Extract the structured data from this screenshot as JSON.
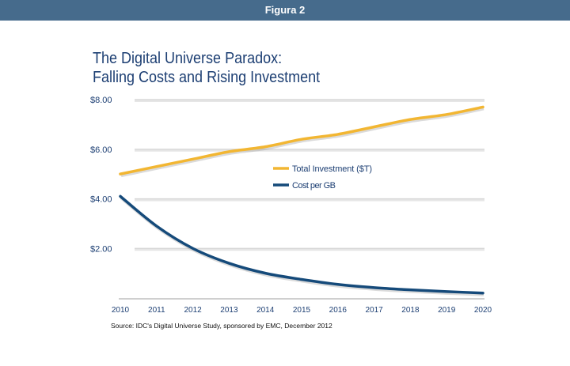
{
  "header": {
    "label": "Figura 2"
  },
  "chart_data": {
    "type": "line",
    "title_line1": "The Digital Universe Paradox:",
    "title_line2": "Falling Costs and Rising Investment",
    "x": [
      2010,
      2011,
      2012,
      2013,
      2014,
      2015,
      2016,
      2017,
      2018,
      2019,
      2020
    ],
    "x_tick_labels": [
      "2010",
      "2011",
      "2012",
      "2013",
      "2014",
      "2015",
      "2016",
      "2017",
      "2018",
      "2019",
      "2020"
    ],
    "y_tick_labels": [
      "$2.00",
      "$4.00",
      "$6.00",
      "$8.00"
    ],
    "y_ticks": [
      2,
      4,
      6,
      8
    ],
    "ylim": [
      0,
      8
    ],
    "xlabel": "",
    "ylabel": "",
    "grid": true,
    "legend_position": "center",
    "series": [
      {
        "name": "Total Investment ($T)",
        "color": "#f2b632",
        "values": [
          5.0,
          5.3,
          5.6,
          5.9,
          6.1,
          6.4,
          6.6,
          6.9,
          7.2,
          7.4,
          7.7
        ]
      },
      {
        "name": "Cost per GB",
        "color": "#154a7a",
        "values": [
          4.1,
          2.9,
          2.0,
          1.4,
          1.0,
          0.75,
          0.55,
          0.42,
          0.33,
          0.26,
          0.2
        ]
      }
    ],
    "source": "Source: IDC's Digital Universe Study, sponsored by EMC, December 2012"
  }
}
